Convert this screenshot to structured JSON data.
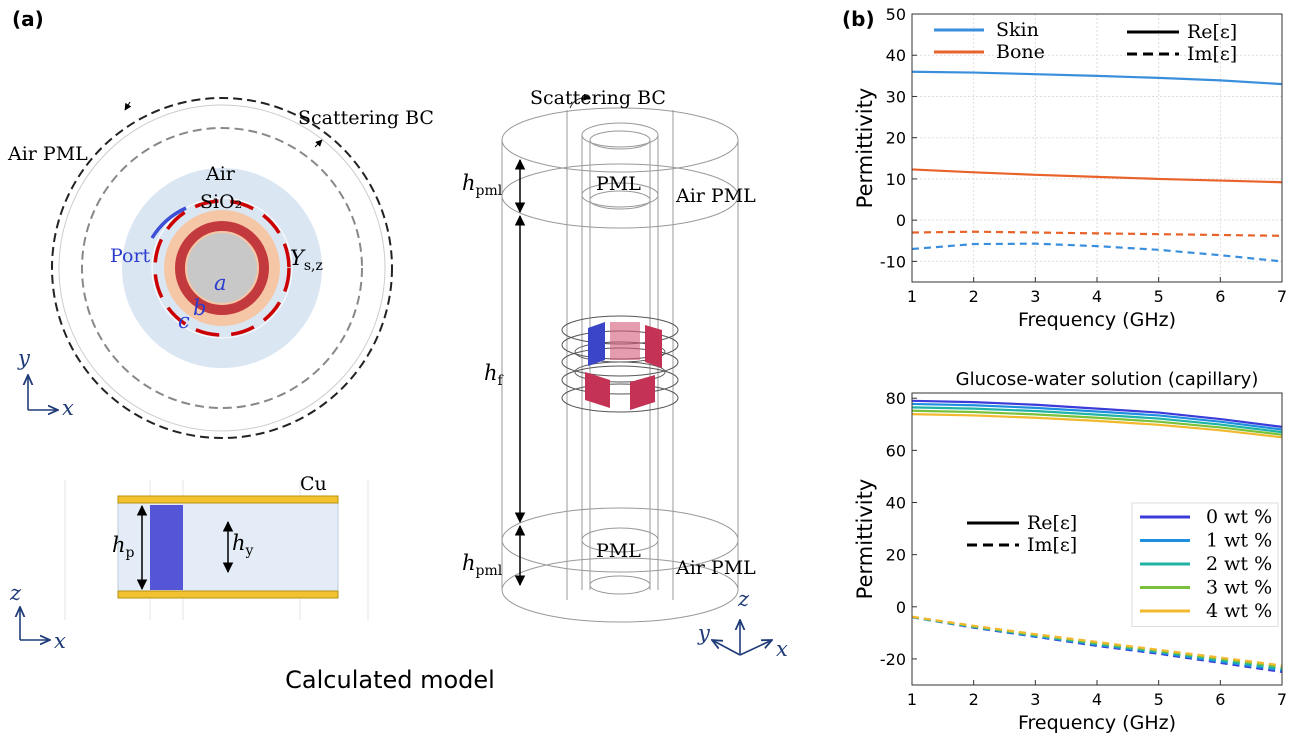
{
  "panel_labels": [
    "(a)",
    "(b)"
  ],
  "diagram": {
    "top_view": {
      "air_pml": "Air PML",
      "scattering_bc": "Scattering BC",
      "air": "Air",
      "sio2": "SiO₂",
      "port": "Port",
      "a": "a",
      "b": "b",
      "c": "c",
      "ys": {
        "main": "Y",
        "sub": "s,z"
      },
      "axis_v": "y",
      "axis_h": "x"
    },
    "side_view": {
      "cu": "Cu",
      "hp": {
        "main": "h",
        "sub": "p"
      },
      "hy": {
        "main": "h",
        "sub": "y"
      },
      "axis_v": "z",
      "axis_h": "x"
    },
    "model_3d": {
      "scattering_bc": "Scattering BC",
      "hpml_top": {
        "main": "h",
        "sub": "pml"
      },
      "pml_top": "PML",
      "air_pml_top": "Air PML",
      "hf": {
        "main": "h",
        "sub": "f"
      },
      "hpml_bottom": {
        "main": "h",
        "sub": "pml"
      },
      "pml_bottom": "PML",
      "air_pml_bottom": "Air PML",
      "axis_z": "z",
      "axis_y": "y",
      "axis_x": "x"
    },
    "caption": "Calculated model"
  },
  "chart_data": [
    {
      "type": "line",
      "xlabel": "Frequency (GHz)",
      "ylabel": "Permittivity",
      "grid": true,
      "x": [
        1,
        2,
        3,
        4,
        5,
        6,
        7
      ],
      "xlim": [
        1,
        7
      ],
      "xticks": [
        1,
        2,
        3,
        4,
        5,
        6,
        7
      ],
      "ylim": [
        -15,
        50
      ],
      "yticks": [
        -10,
        0,
        10,
        20,
        30,
        40,
        50
      ],
      "legend": "upper",
      "line_styles": [
        {
          "label": "Re[ε]",
          "dash": false
        },
        {
          "label": "Im[ε]",
          "dash": true
        }
      ],
      "series": [
        {
          "name": "Skin",
          "color": "#3a8fdc",
          "values": [
            36.0,
            35.8,
            35.4,
            35.0,
            34.5,
            33.9,
            33.0
          ],
          "values_im": [
            -7.0,
            -5.8,
            -5.7,
            -6.3,
            -7.2,
            -8.5,
            -10.0
          ]
        },
        {
          "name": "Bone",
          "color": "#e8622a",
          "values": [
            12.3,
            11.6,
            11.0,
            10.5,
            10.0,
            9.6,
            9.2
          ],
          "values_im": [
            -3.0,
            -2.8,
            -3.0,
            -3.2,
            -3.4,
            -3.6,
            -3.8
          ]
        }
      ]
    },
    {
      "type": "line",
      "title": "Glucose-water solution (capillary)",
      "xlabel": "Frequency (GHz)",
      "ylabel": "Permittivity",
      "grid": false,
      "x": [
        1,
        2,
        3,
        4,
        5,
        6,
        7
      ],
      "xlim": [
        1,
        7
      ],
      "xticks": [
        1,
        2,
        3,
        4,
        5,
        6,
        7
      ],
      "ylim": [
        -30,
        82
      ],
      "yticks": [
        -20,
        0,
        20,
        40,
        60,
        80
      ],
      "legend": "lower right",
      "line_styles": [
        {
          "label": "Re[ε]",
          "dash": false
        },
        {
          "label": "Im[ε]",
          "dash": true
        }
      ],
      "series": [
        {
          "name": "0 wt %",
          "color": "#3b3bd9",
          "values": [
            79.0,
            78.5,
            77.5,
            76.0,
            74.5,
            72.0,
            69.0
          ],
          "values_im": [
            -4.0,
            -8.0,
            -11.5,
            -15.0,
            -18.0,
            -21.5,
            -25.0
          ]
        },
        {
          "name": "1 wt %",
          "color": "#1f8fe0",
          "values": [
            77.8,
            77.3,
            76.3,
            74.9,
            73.4,
            71.0,
            68.0
          ],
          "values_im": [
            -4.0,
            -7.8,
            -11.3,
            -14.6,
            -17.6,
            -21.0,
            -24.4
          ]
        },
        {
          "name": "2 wt %",
          "color": "#1fb3a6",
          "values": [
            76.5,
            76.0,
            75.1,
            73.7,
            72.2,
            69.9,
            67.0
          ],
          "values_im": [
            -3.9,
            -7.7,
            -11.0,
            -14.3,
            -17.2,
            -20.5,
            -23.8
          ]
        },
        {
          "name": "3 wt %",
          "color": "#79c13b",
          "values": [
            75.2,
            74.7,
            73.8,
            72.5,
            71.0,
            68.8,
            66.0
          ],
          "values_im": [
            -3.9,
            -7.5,
            -10.8,
            -13.9,
            -16.9,
            -20.0,
            -23.1
          ]
        },
        {
          "name": "4 wt %",
          "color": "#f2b82e",
          "values": [
            73.9,
            73.4,
            72.5,
            71.3,
            69.8,
            67.7,
            65.0
          ],
          "values_im": [
            -3.8,
            -7.3,
            -10.5,
            -13.5,
            -16.5,
            -19.5,
            -22.5
          ]
        }
      ]
    }
  ]
}
